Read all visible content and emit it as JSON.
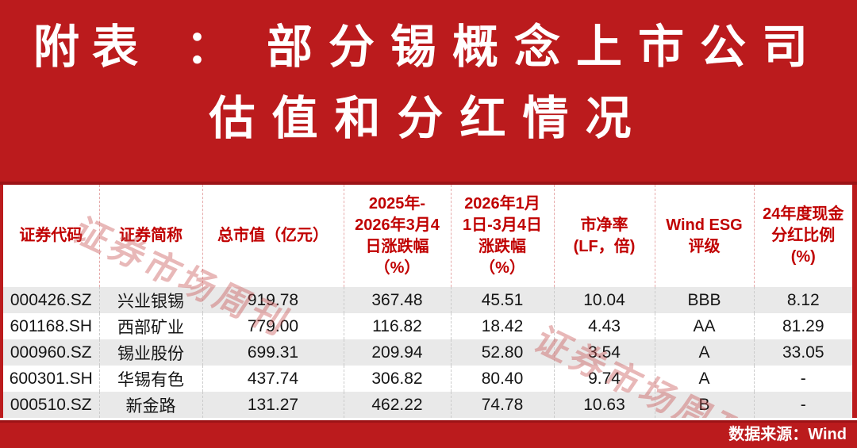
{
  "banner": {
    "line1_left": "附表",
    "line1_colon": "：",
    "line1_right": "部分锡概念上市公司",
    "line2": "估值和分红情况"
  },
  "watermark": {
    "text": "证券市场周刊"
  },
  "table": {
    "columns": [
      {
        "key": "code",
        "lines": [
          "证券代码"
        ]
      },
      {
        "key": "name",
        "lines": [
          "证券简称"
        ]
      },
      {
        "key": "market-cap",
        "lines": [
          "总市值（亿元）"
        ]
      },
      {
        "key": "chg-2025",
        "lines": [
          "2025年-",
          "2026年3月4",
          "日涨跌幅",
          "（%）"
        ]
      },
      {
        "key": "chg-2026",
        "lines": [
          "2026年1月",
          "1日-3月4日",
          "涨跌幅",
          "（%）"
        ]
      },
      {
        "key": "pb",
        "lines": [
          "市净率",
          "(LF，倍)"
        ]
      },
      {
        "key": "esg",
        "lines": [
          "Wind ESG",
          "评级"
        ]
      },
      {
        "key": "dividend",
        "lines": [
          "24年度现金",
          "分红比例",
          "(%)"
        ]
      }
    ],
    "rows": [
      [
        "000426.SZ",
        "兴业银锡",
        "919.78",
        "367.48",
        "45.51",
        "10.04",
        "BBB",
        "8.12"
      ],
      [
        "601168.SH",
        "西部矿业",
        "779.00",
        "116.82",
        "18.42",
        "4.43",
        "AA",
        "81.29"
      ],
      [
        "000960.SZ",
        "锡业股份",
        "699.31",
        "209.94",
        "52.80",
        "3.54",
        "A",
        "33.05"
      ],
      [
        "600301.SH",
        "华锡有色",
        "437.74",
        "306.82",
        "80.40",
        "9.74",
        "A",
        "-"
      ],
      [
        "000510.SZ",
        "新金路",
        "131.27",
        "462.22",
        "74.78",
        "10.63",
        "B",
        "-"
      ]
    ]
  },
  "footer": {
    "source_label": "数据来源：Wind"
  },
  "colors": {
    "banner_red": "#BB1B1D",
    "edge_dark_red": "#9C1316",
    "header_text_red": "#C00000",
    "row_alt_gray": "#E9E9E9",
    "watermark_pink": "rgba(198,78,78,0.40)"
  }
}
